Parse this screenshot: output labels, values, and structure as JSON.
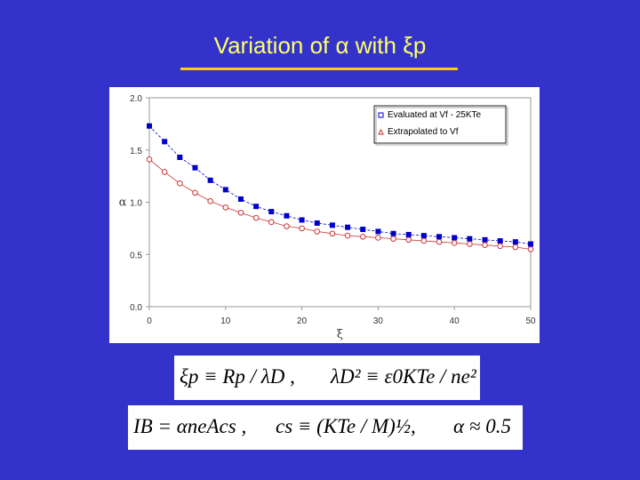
{
  "slide": {
    "title": "Variation of α with ξp",
    "formula_1": {
      "part_a": "ξp ≡ Rp / λD ,",
      "part_b": "λD² ≡ ε0KTe / ne²"
    },
    "formula_2": {
      "part_a": "IB = αneAcs ,",
      "part_b": "cs ≡ (KTe / M)½,",
      "part_c": "α ≈ 0.5"
    }
  },
  "colors": {
    "background": "#3333cc",
    "title": "#ffff66",
    "rule": "#ffcc00",
    "series1": "#0000cc",
    "series2": "#cc3333"
  },
  "chart_data": {
    "type": "scatter",
    "title": "",
    "xlabel": "ξ",
    "ylabel": "α",
    "xlim": [
      0,
      50
    ],
    "ylim": [
      0,
      2.0
    ],
    "xticks": [
      "0",
      "10",
      "20",
      "30",
      "40",
      "50"
    ],
    "yticks": [
      "0.0",
      "0.5",
      "1.0",
      "1.5",
      "2.0"
    ],
    "grid": false,
    "legend_position": "top-right",
    "series": [
      {
        "name": "Evaluated at Vf - 25KTe",
        "marker": "filled-square",
        "x": [
          0,
          2,
          4,
          6,
          8,
          10,
          12,
          14,
          16,
          18,
          20,
          22,
          24,
          26,
          28,
          30,
          32,
          34,
          36,
          38,
          40,
          42,
          44,
          46,
          48,
          50
        ],
        "y": [
          1.73,
          1.58,
          1.43,
          1.33,
          1.21,
          1.12,
          1.03,
          0.96,
          0.91,
          0.87,
          0.83,
          0.8,
          0.78,
          0.76,
          0.74,
          0.72,
          0.7,
          0.69,
          0.68,
          0.67,
          0.66,
          0.65,
          0.64,
          0.63,
          0.62,
          0.6
        ]
      },
      {
        "name": "Extrapolated to Vf",
        "marker": "open-circle",
        "x": [
          0,
          2,
          4,
          6,
          8,
          10,
          12,
          14,
          16,
          18,
          20,
          22,
          24,
          26,
          28,
          30,
          32,
          34,
          36,
          38,
          40,
          42,
          44,
          46,
          48,
          50
        ],
        "y": [
          1.41,
          1.29,
          1.18,
          1.09,
          1.01,
          0.95,
          0.9,
          0.85,
          0.81,
          0.77,
          0.75,
          0.72,
          0.7,
          0.68,
          0.67,
          0.66,
          0.65,
          0.64,
          0.63,
          0.62,
          0.61,
          0.6,
          0.59,
          0.58,
          0.57,
          0.55
        ]
      }
    ]
  }
}
